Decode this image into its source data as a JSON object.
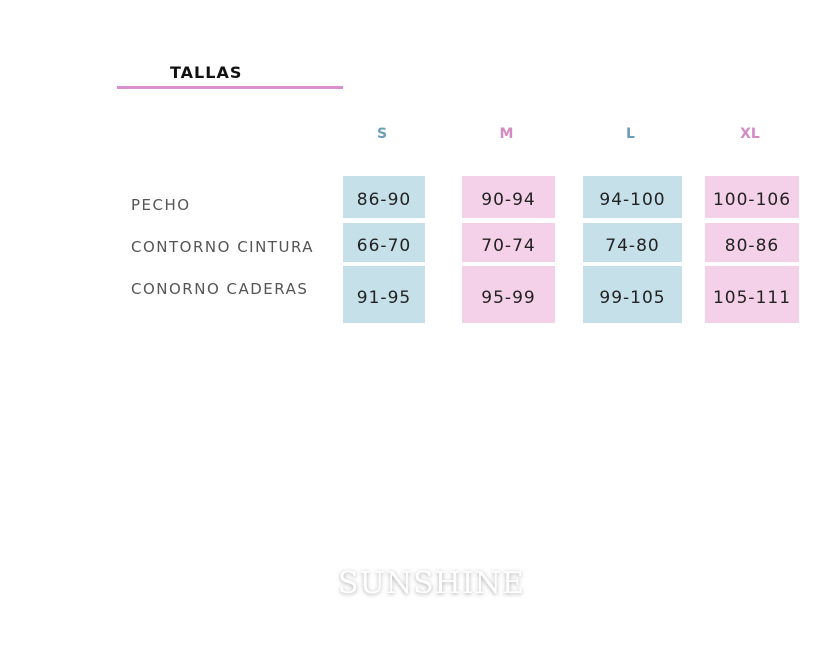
{
  "title": "TALLAS",
  "sizes": [
    {
      "label": "S",
      "color": "#6a9fb8"
    },
    {
      "label": "M",
      "color": "#d48bc4"
    },
    {
      "label": "L",
      "color": "#6a9fb8"
    },
    {
      "label": "XL",
      "color": "#d48bc4"
    }
  ],
  "rows": [
    {
      "label": "PECHO",
      "values": [
        "86-90",
        "90-94",
        "94-100",
        "100-106"
      ]
    },
    {
      "label": "CONTORNO CINTURA",
      "values": [
        "66-70",
        "70-74",
        "74-80",
        "80-86"
      ]
    },
    {
      "label": "CONORNO CADERAS",
      "values": [
        "91-95",
        "95-99",
        "99-105",
        "105-111"
      ]
    }
  ],
  "cell_colors": {
    "blue": "#c6e0ea",
    "pink": "#f5d1e9"
  },
  "watermark": "SUNSHINE"
}
